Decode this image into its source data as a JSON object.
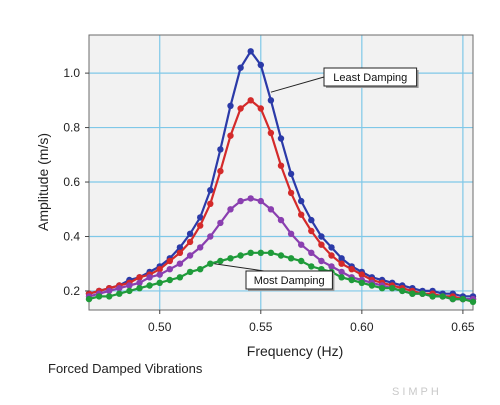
{
  "caption": "Forced Damped Vibrations",
  "watermark": "SIMPH",
  "chart_data": {
    "type": "scatter",
    "xlabel": "Frequency (Hz)",
    "ylabel": "Amplitude (m/s)",
    "xlim": [
      0.465,
      0.655
    ],
    "ylim": [
      0.13,
      1.14
    ],
    "x_ticks": [
      0.5,
      0.55,
      0.6,
      0.65
    ],
    "x_tick_labels": [
      "0.50",
      "0.55",
      "0.60",
      "0.65"
    ],
    "y_ticks": [
      0.2,
      0.4,
      0.6,
      0.8,
      1.0
    ],
    "y_tick_labels": [
      "0.2",
      "0.4",
      "0.6",
      "0.8",
      "1.0"
    ],
    "grid": true,
    "plot_background": "#f2f2f2",
    "grid_color": "#7fc8e8",
    "x": [
      0.465,
      0.47,
      0.475,
      0.48,
      0.485,
      0.49,
      0.495,
      0.5,
      0.505,
      0.51,
      0.515,
      0.52,
      0.525,
      0.53,
      0.535,
      0.54,
      0.545,
      0.55,
      0.555,
      0.56,
      0.565,
      0.57,
      0.575,
      0.58,
      0.585,
      0.59,
      0.595,
      0.6,
      0.605,
      0.61,
      0.615,
      0.62,
      0.625,
      0.63,
      0.635,
      0.64,
      0.645,
      0.65,
      0.655
    ],
    "series": [
      {
        "color": "#2b3aa8",
        "values": [
          0.19,
          0.2,
          0.21,
          0.22,
          0.24,
          0.25,
          0.27,
          0.29,
          0.32,
          0.36,
          0.41,
          0.47,
          0.57,
          0.72,
          0.88,
          1.02,
          1.08,
          1.03,
          0.9,
          0.76,
          0.63,
          0.53,
          0.46,
          0.4,
          0.36,
          0.32,
          0.29,
          0.27,
          0.25,
          0.24,
          0.23,
          0.22,
          0.21,
          0.2,
          0.2,
          0.19,
          0.19,
          0.18,
          0.18
        ]
      },
      {
        "color": "#d42a2a",
        "values": [
          0.19,
          0.2,
          0.21,
          0.22,
          0.23,
          0.25,
          0.26,
          0.28,
          0.31,
          0.34,
          0.38,
          0.44,
          0.52,
          0.64,
          0.77,
          0.87,
          0.9,
          0.87,
          0.78,
          0.66,
          0.56,
          0.48,
          0.42,
          0.37,
          0.33,
          0.3,
          0.28,
          0.26,
          0.24,
          0.23,
          0.22,
          0.21,
          0.2,
          0.19,
          0.19,
          0.18,
          0.18,
          0.17,
          0.17
        ]
      },
      {
        "color": "#8a3fb0",
        "values": [
          0.18,
          0.19,
          0.2,
          0.21,
          0.22,
          0.23,
          0.25,
          0.26,
          0.28,
          0.3,
          0.33,
          0.36,
          0.4,
          0.45,
          0.5,
          0.53,
          0.54,
          0.53,
          0.5,
          0.46,
          0.41,
          0.37,
          0.34,
          0.31,
          0.29,
          0.27,
          0.25,
          0.24,
          0.23,
          0.22,
          0.21,
          0.2,
          0.19,
          0.19,
          0.18,
          0.18,
          0.17,
          0.17,
          0.17
        ]
      },
      {
        "color": "#1f9b3a",
        "values": [
          0.17,
          0.18,
          0.18,
          0.19,
          0.2,
          0.21,
          0.22,
          0.23,
          0.24,
          0.25,
          0.27,
          0.28,
          0.3,
          0.31,
          0.32,
          0.33,
          0.34,
          0.34,
          0.34,
          0.33,
          0.32,
          0.31,
          0.29,
          0.28,
          0.27,
          0.25,
          0.24,
          0.23,
          0.22,
          0.21,
          0.21,
          0.2,
          0.19,
          0.19,
          0.18,
          0.18,
          0.17,
          0.17,
          0.16
        ]
      }
    ],
    "annotations": [
      {
        "text": "Least Damping",
        "series_index": 0,
        "target_x": 0.555,
        "target_y": 0.93
      },
      {
        "text": "Most Damping",
        "series_index": 3,
        "target_x": 0.527,
        "target_y": 0.3
      }
    ]
  }
}
